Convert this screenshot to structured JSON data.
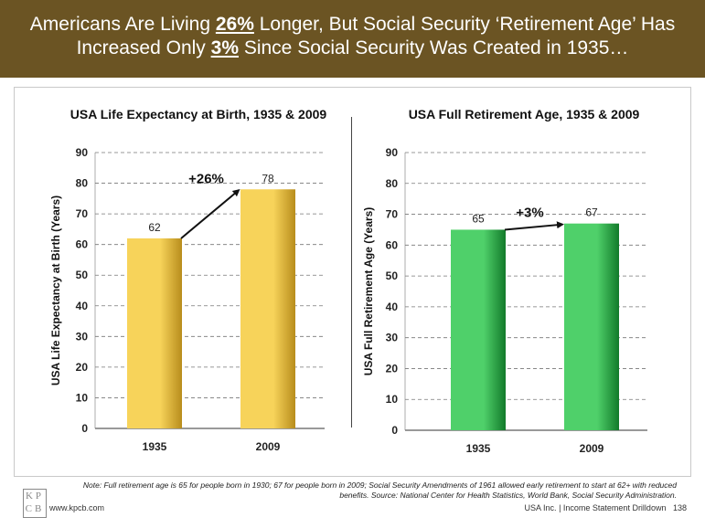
{
  "header": {
    "line1_pre": "Americans Are Living ",
    "line1_em": "26%",
    "line1_post": " Longer, But Social Security ‘Retirement Age’ Has",
    "line2_pre": "Increased Only ",
    "line2_em": "3%",
    "line2_post": " Since Social Security Was Created in 1935…"
  },
  "colors": {
    "header_bg": "#6b5423",
    "left_bar_light": "#f7d35a",
    "left_bar_dark": "#b88d1c",
    "right_bar_light": "#4fd06a",
    "right_bar_dark": "#127a2a"
  },
  "chart_data": [
    {
      "type": "bar",
      "title": "USA Life Expectancy at Birth, 1935 & 2009",
      "ylabel": "USA Life Expectancy at Birth (Years)",
      "xlabel": "",
      "categories": [
        "1935",
        "2009"
      ],
      "values": [
        62,
        78
      ],
      "data_labels": [
        "62",
        "78"
      ],
      "ylim": [
        0,
        90
      ],
      "yticks": [
        0,
        10,
        20,
        30,
        40,
        50,
        60,
        70,
        80,
        90
      ],
      "grid": "dashed horizontal",
      "annotation": "+26%"
    },
    {
      "type": "bar",
      "title": "USA Full Retirement Age, 1935 & 2009",
      "ylabel": "USA Full Retirement Age (Years)",
      "xlabel": "",
      "categories": [
        "1935",
        "2009"
      ],
      "values": [
        65,
        67
      ],
      "data_labels": [
        "65",
        "67"
      ],
      "ylim": [
        0,
        90
      ],
      "yticks": [
        0,
        10,
        20,
        30,
        40,
        50,
        60,
        70,
        80,
        90
      ],
      "grid": "dashed horizontal",
      "annotation": "+3%"
    }
  ],
  "note": "Note: Full retirement age is 65 for people born in 1930; 67 for people born in 2009; Social Security Amendments of 1961 allowed early retirement to start at 62+ with reduced benefits. Source: National Center for Health Statistics, World Bank, Social Security Administration.",
  "footer": {
    "logo_text": "KPCB",
    "website": "www.kpcb.com",
    "right_text": "USA Inc. | Income Statement Drilldown",
    "page_number": "138"
  }
}
